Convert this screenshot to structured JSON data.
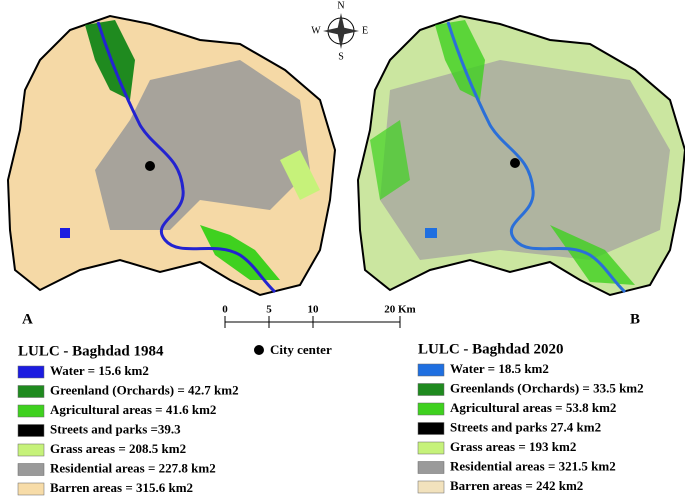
{
  "panels": [
    {
      "label": "A"
    },
    {
      "label": "B"
    }
  ],
  "compass": {
    "n": "N",
    "s": "S",
    "e": "E",
    "w": "W"
  },
  "scale_bar": {
    "ticks": [
      "0",
      "5",
      "10",
      "20 Km"
    ]
  },
  "city_center": "City center",
  "legends": [
    {
      "title": "LULC - Baghdad 1984",
      "items": [
        {
          "label": "Water = 15.6 km2",
          "color": "#1c1ce0"
        },
        {
          "label": "Greenland (Orchards) = 42.7 km2",
          "color": "#1f8a1f"
        },
        {
          "label": "Agricultural areas = 41.6 km2",
          "color": "#3fd11f"
        },
        {
          "label": "Streets and parks =39.3",
          "color": "#000000"
        },
        {
          "label": "Grass areas = 208.5 km2",
          "color": "#c6f27a"
        },
        {
          "label": "Residential areas = 227.8 km2",
          "color": "#9a9a9a"
        },
        {
          "label": "Barren areas = 315.6 km2",
          "color": "#f7dca8"
        }
      ]
    },
    {
      "title": "LULC - Baghdad 2020",
      "items": [
        {
          "label": "Water = 18.5 km2",
          "color": "#1f6fe0"
        },
        {
          "label": "Greenlands (Orchards) = 33.5 km2",
          "color": "#1f8a1f"
        },
        {
          "label": "Agricultural areas = 53.8 km2",
          "color": "#3fd11f"
        },
        {
          "label": "Streets and parks  27.4 km2",
          "color": "#000000"
        },
        {
          "label": "Grass areas = 193 km2",
          "color": "#c6f27a"
        },
        {
          "label": "Residential areas = 321.5 km2",
          "color": "#9a9a9a"
        },
        {
          "label": "Barren areas = 242 km2",
          "color": "#f2e2bd"
        }
      ]
    }
  ]
}
